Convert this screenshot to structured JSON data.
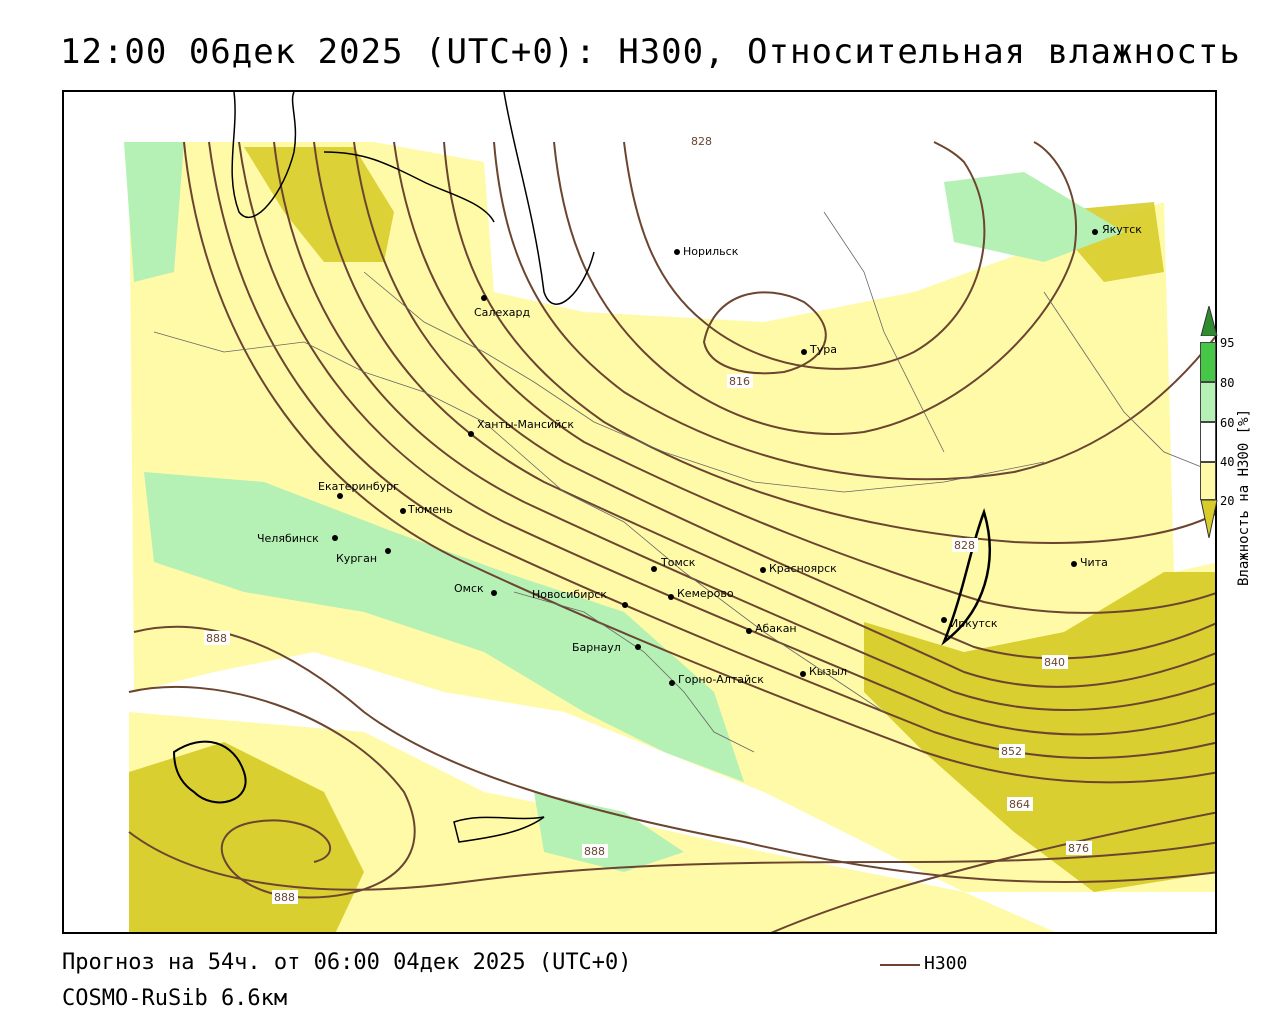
{
  "title": "12:00 06дек 2025 (UTC+0): H300, Относительная влажность",
  "footer": {
    "forecast": "Прогноз на 54ч. от 06:00 04дек 2025 (UTC+0)",
    "model": "COSMO-RuSib 6.6км"
  },
  "legend": {
    "line_label": "H300",
    "line_color": "#6b4530"
  },
  "colorbar": {
    "title": "Влажность на H300 [%]",
    "ticks": [
      "95",
      "80",
      "60",
      "40",
      "20"
    ],
    "colors": {
      "gt95": "#2e8b2e",
      "80_95": "#46c846",
      "60_80": "#b5f0b5",
      "40_60": "#ffffff",
      "20_40": "#fffaa8",
      "lt20": "#d8cc2a"
    }
  },
  "cities": [
    {
      "name": "Якутск"
    },
    {
      "name": "Норильск"
    },
    {
      "name": "Салехард"
    },
    {
      "name": "Тура"
    },
    {
      "name": "Ханты-Мансийск"
    },
    {
      "name": "Екатеринбург"
    },
    {
      "name": "Тюмень"
    },
    {
      "name": "Челябинск"
    },
    {
      "name": "Курган"
    },
    {
      "name": "Омск"
    },
    {
      "name": "Новосибирск"
    },
    {
      "name": "Томск"
    },
    {
      "name": "Кемерово"
    },
    {
      "name": "Красноярск"
    },
    {
      "name": "Барнаул"
    },
    {
      "name": "Абакан"
    },
    {
      "name": "Горно-Алтайск"
    },
    {
      "name": "Кызыл"
    },
    {
      "name": "Иркутск"
    },
    {
      "name": "Чита"
    }
  ],
  "isoline_labels": [
    "828",
    "816",
    "828",
    "840",
    "852",
    "864",
    "876",
    "888",
    "888",
    "888"
  ]
}
